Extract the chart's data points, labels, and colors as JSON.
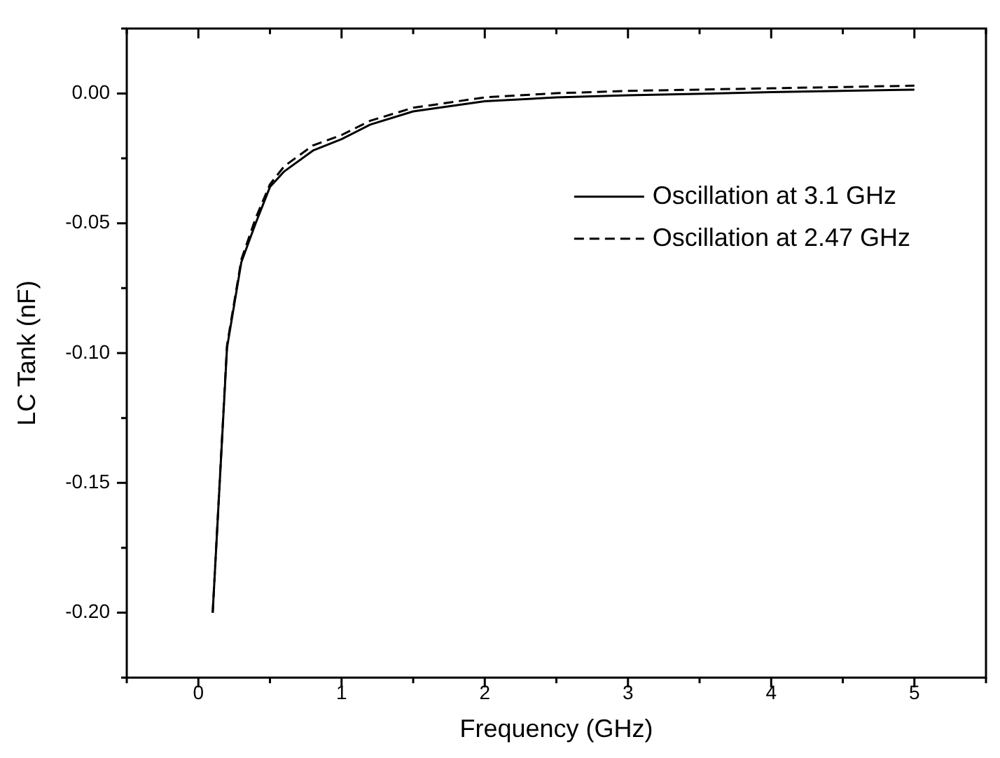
{
  "chart_data": {
    "type": "line",
    "xlabel": "Frequency (GHz)",
    "ylabel": "LC Tank (nF)",
    "xlim": [
      -0.5,
      5.5
    ],
    "xticks": [
      0,
      1,
      2,
      3,
      4,
      5
    ],
    "ylim": [
      -0.225,
      0.025
    ],
    "yticks": [
      {
        "value": -0.2,
        "label": "-0.20"
      },
      {
        "value": -0.15,
        "label": "-0.15"
      },
      {
        "value": -0.1,
        "label": "-0.10"
      },
      {
        "value": -0.05,
        "label": "-0.05"
      },
      {
        "value": 0,
        "label": "0.00"
      }
    ],
    "grid": false,
    "legend": "top right",
    "marker": "none",
    "series": [
      {
        "name": "Oscillation at 3.1 GHz",
        "color": "#000000",
        "line_style": "solid",
        "x": [
          0.1,
          0.2,
          0.3,
          0.4,
          0.5,
          0.6,
          0.8,
          1.0,
          1.2,
          1.5,
          2,
          2.5,
          3,
          4,
          5
        ],
        "values": [
          -0.2,
          -0.098,
          -0.065,
          -0.05,
          -0.036,
          -0.03,
          -0.022,
          -0.0176,
          -0.012,
          -0.0069,
          -0.003,
          -0.0015,
          -0.0007,
          0.0005,
          0.0015
        ]
      },
      {
        "name": "Oscillation at 2.47 GHz",
        "color": "#000000",
        "line_style": "dashed",
        "x": [
          0.1,
          0.2,
          0.3,
          0.4,
          0.5,
          0.6,
          0.8,
          1.0,
          1.2,
          1.5,
          2,
          2.5,
          3,
          4,
          5
        ],
        "values": [
          -0.2,
          -0.097,
          -0.064,
          -0.048,
          -0.035,
          -0.028,
          -0.02,
          -0.016,
          -0.0105,
          -0.0055,
          -0.0015,
          0.0001,
          0.001,
          0.002,
          0.003
        ]
      }
    ]
  }
}
